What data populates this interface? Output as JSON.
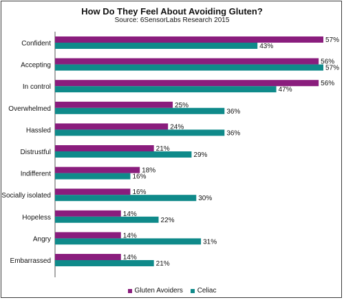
{
  "colors": {
    "gluten_avoiders": "#8a1d7d",
    "celiac": "#0f8a8a"
  },
  "chart_data": {
    "type": "bar",
    "orientation": "horizontal",
    "title": "How Do They Feel About Avoiding Gluten?",
    "subtitle": "Source: 6SensorLabs Research 2015",
    "categories": [
      "Confident",
      "Accepting",
      "In control",
      "Overwhelmed",
      "Hassled",
      "Distrustful",
      "Indifferent",
      "Socially isolated",
      "Hopeless",
      "Angry",
      "Embarrassed"
    ],
    "series": [
      {
        "name": "Gluten Avoiders",
        "values": [
          57,
          56,
          56,
          25,
          24,
          21,
          18,
          16,
          14,
          14,
          14
        ],
        "labels": [
          "57%",
          "56%",
          "56%",
          "25%",
          "24%",
          "21%",
          "18%",
          "16%",
          "14%",
          "14%",
          "14%"
        ]
      },
      {
        "name": "Celiac",
        "values": [
          43,
          57,
          47,
          36,
          36,
          29,
          16,
          30,
          22,
          31,
          21
        ],
        "labels": [
          "43%",
          "57%",
          "47%",
          "36%",
          "36%",
          "29%",
          "16%",
          "30%",
          "22%",
          "31%",
          "21%"
        ]
      }
    ],
    "xlim": [
      0,
      57
    ],
    "grid": false,
    "legend": "bottom"
  }
}
